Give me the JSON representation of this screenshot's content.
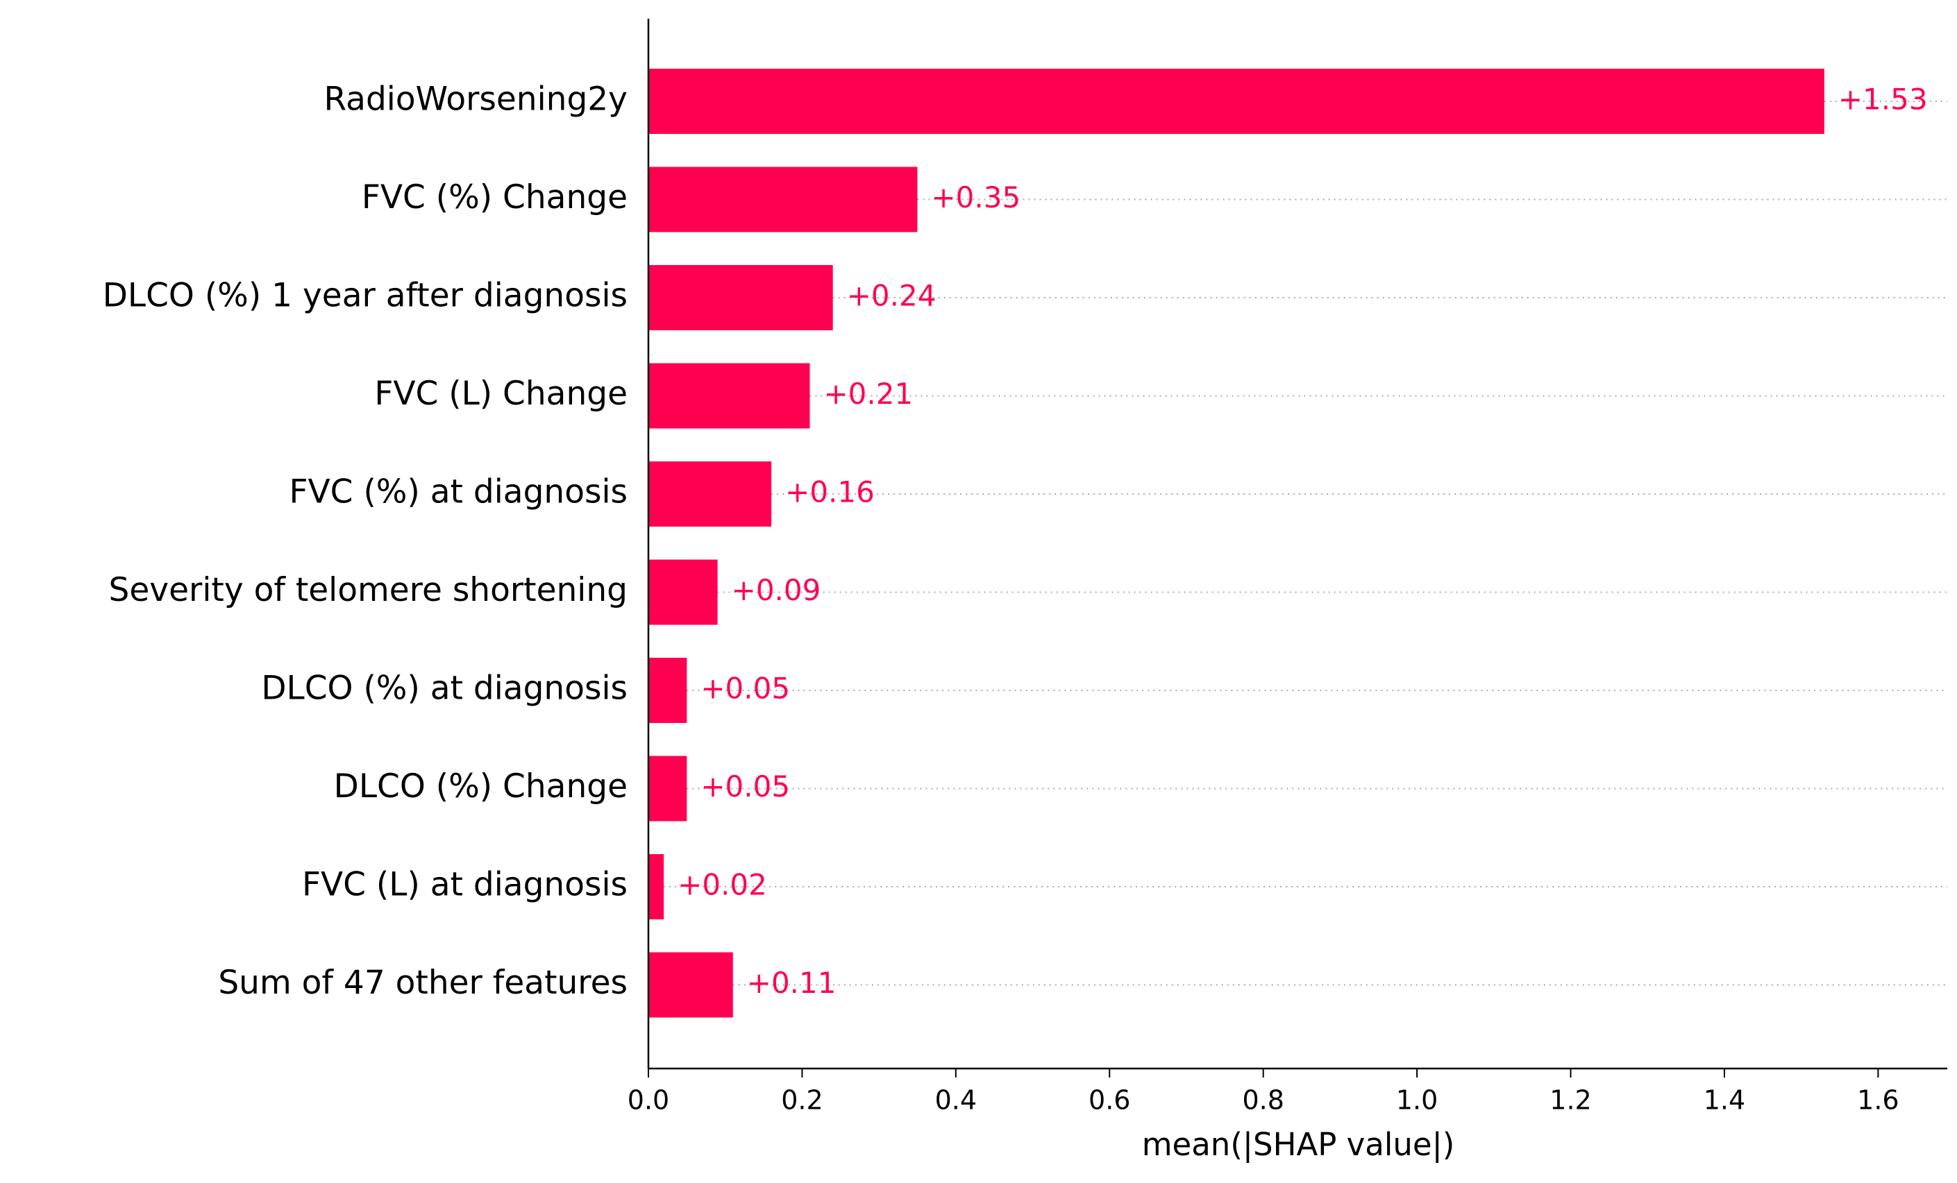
{
  "chart_data": {
    "type": "hbar",
    "x_label": "mean(|SHAP value|)",
    "categories": [
      "RadioWorsening2y",
      "FVC (%) Change",
      "DLCO (%) 1 year after diagnosis",
      "FVC (L) Change",
      "FVC (%) at diagnosis",
      "Severity of telomere shortening",
      "DLCO (%) at diagnosis",
      "DLCO (%) Change",
      "FVC (L) at diagnosis",
      "Sum of 47 other features"
    ],
    "values": [
      1.53,
      0.35,
      0.24,
      0.21,
      0.16,
      0.09,
      0.05,
      0.05,
      0.02,
      0.11
    ],
    "value_labels": [
      "+1.53",
      "+0.35",
      "+0.24",
      "+0.21",
      "+0.16",
      "+0.09",
      "+0.05",
      "+0.05",
      "+0.02",
      "+0.11"
    ],
    "color": "#ff0051",
    "xlim": [
      0,
      1.69
    ],
    "xticks": [
      {
        "value": 0,
        "label": "0.0"
      },
      0.2,
      0.4,
      0.6,
      0.8,
      {
        "value": 1,
        "label": "1.0"
      },
      1.2,
      1.4,
      1.6
    ],
    "row_guides": true
  }
}
